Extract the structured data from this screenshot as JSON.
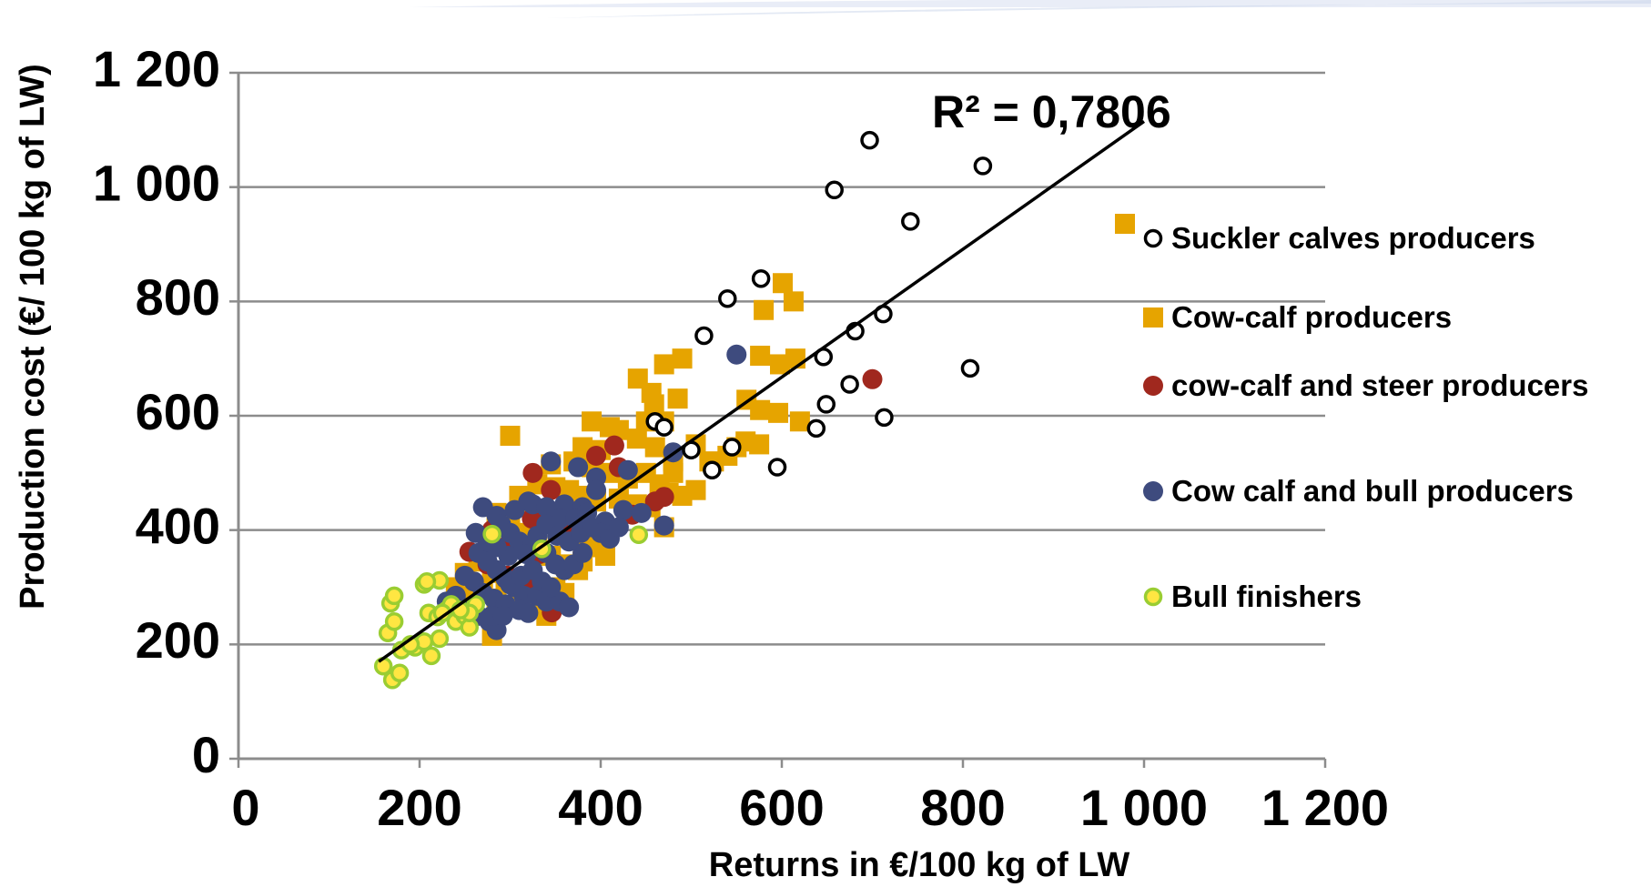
{
  "chart_data": {
    "type": "scatter",
    "xlabel": "Returns in €/100 kg of LW",
    "ylabel": "Production cost (€/ 100 kg of LW)",
    "xlim": [
      0,
      1200
    ],
    "ylim": [
      0,
      1200
    ],
    "x_ticks": [
      "0",
      "200",
      "400",
      "600",
      "800",
      "1 000",
      "1 200"
    ],
    "y_ticks": [
      "0",
      "200",
      "400",
      "600",
      "800",
      "1 000",
      "1 200"
    ],
    "grid": "horizontal",
    "legend_position": "right",
    "trendline": {
      "label": "R² = 0,7806",
      "from": [
        155,
        170
      ],
      "to": [
        1000,
        1115
      ]
    },
    "series": [
      {
        "name": "Suckler calves producers",
        "marker": "circle-open",
        "fill": "#ffffff",
        "stroke": "#000000",
        "points": [
          [
            697,
            1082
          ],
          [
            822,
            1037
          ],
          [
            658,
            995
          ],
          [
            742,
            940
          ],
          [
            577,
            840
          ],
          [
            540,
            805
          ],
          [
            712,
            778
          ],
          [
            681,
            748
          ],
          [
            514,
            740
          ],
          [
            646,
            703
          ],
          [
            808,
            683
          ],
          [
            675,
            655
          ],
          [
            649,
            620
          ],
          [
            713,
            597
          ],
          [
            638,
            578
          ],
          [
            595,
            510
          ],
          [
            523,
            505
          ],
          [
            460,
            590
          ],
          [
            470,
            580
          ],
          [
            500,
            540
          ],
          [
            545,
            545
          ]
        ]
      },
      {
        "name": "Cow-calf producers",
        "marker": "square",
        "fill": "#e6a400",
        "stroke": "#e6a400",
        "points": [
          [
            601,
            832
          ],
          [
            613,
            800
          ],
          [
            580,
            785
          ],
          [
            470,
            690
          ],
          [
            490,
            700
          ],
          [
            576,
            705
          ],
          [
            598,
            690
          ],
          [
            615,
            700
          ],
          [
            441,
            665
          ],
          [
            456,
            640
          ],
          [
            459,
            620
          ],
          [
            485,
            630
          ],
          [
            561,
            628
          ],
          [
            576,
            610
          ],
          [
            596,
            605
          ],
          [
            470,
            590
          ],
          [
            450,
            590
          ],
          [
            390,
            590
          ],
          [
            410,
            580
          ],
          [
            420,
            575
          ],
          [
            620,
            590
          ],
          [
            300,
            565
          ],
          [
            380,
            545
          ],
          [
            400,
            540
          ],
          [
            440,
            560
          ],
          [
            460,
            545
          ],
          [
            480,
            520
          ],
          [
            525,
            520
          ],
          [
            550,
            545
          ],
          [
            560,
            555
          ],
          [
            575,
            550
          ],
          [
            345,
            515
          ],
          [
            370,
            520
          ],
          [
            390,
            510
          ],
          [
            410,
            500
          ],
          [
            430,
            490
          ],
          [
            450,
            500
          ],
          [
            465,
            480
          ],
          [
            475,
            465
          ],
          [
            490,
            460
          ],
          [
            505,
            470
          ],
          [
            330,
            480
          ],
          [
            350,
            475
          ],
          [
            365,
            470
          ],
          [
            380,
            460
          ],
          [
            395,
            450
          ],
          [
            420,
            455
          ],
          [
            440,
            445
          ],
          [
            455,
            440
          ],
          [
            470,
            405
          ],
          [
            310,
            460
          ],
          [
            320,
            440
          ],
          [
            340,
            420
          ],
          [
            355,
            415
          ],
          [
            370,
            400
          ],
          [
            385,
            380
          ],
          [
            395,
            370
          ],
          [
            405,
            355
          ],
          [
            285,
            430
          ],
          [
            300,
            410
          ],
          [
            315,
            395
          ],
          [
            330,
            370
          ],
          [
            345,
            355
          ],
          [
            360,
            340
          ],
          [
            375,
            330
          ],
          [
            380,
            345
          ],
          [
            265,
            345
          ],
          [
            280,
            325
          ],
          [
            295,
            310
          ],
          [
            310,
            290
          ],
          [
            325,
            275
          ],
          [
            340,
            250
          ],
          [
            350,
            300
          ],
          [
            360,
            290
          ],
          [
            250,
            325
          ],
          [
            270,
            300
          ],
          [
            285,
            280
          ],
          [
            280,
            215
          ],
          [
            240,
            300
          ],
          [
            255,
            290
          ],
          [
            520,
            520
          ],
          [
            540,
            530
          ],
          [
            505,
            550
          ],
          [
            480,
            500
          ]
        ]
      },
      {
        "name": "cow-calf and steer producers",
        "marker": "circle",
        "fill": "#a0281e",
        "stroke": "#a0281e",
        "points": [
          [
            700,
            664
          ],
          [
            415,
            548
          ],
          [
            395,
            530
          ],
          [
            470,
            458
          ],
          [
            362,
            398
          ],
          [
            332,
            358
          ],
          [
            324,
            420
          ],
          [
            255,
            362
          ],
          [
            275,
            340
          ],
          [
            297,
            320
          ],
          [
            316,
            305
          ],
          [
            346,
            256
          ],
          [
            435,
            427
          ],
          [
            460,
            450
          ],
          [
            420,
            510
          ],
          [
            370,
            405
          ],
          [
            300,
            380
          ],
          [
            280,
            400
          ],
          [
            325,
            500
          ],
          [
            345,
            470
          ]
        ]
      },
      {
        "name": "Cow calf and bull producers",
        "marker": "circle",
        "fill": "#3e4b7e",
        "stroke": "#3e4b7e",
        "points": [
          [
            550,
            707
          ],
          [
            480,
            536
          ],
          [
            430,
            505
          ],
          [
            395,
            492
          ],
          [
            375,
            510
          ],
          [
            345,
            520
          ],
          [
            325,
            445
          ],
          [
            305,
            435
          ],
          [
            285,
            425
          ],
          [
            270,
            440
          ],
          [
            360,
            445
          ],
          [
            380,
            440
          ],
          [
            395,
            470
          ],
          [
            320,
            450
          ],
          [
            340,
            440
          ],
          [
            355,
            420
          ],
          [
            372,
            420
          ],
          [
            385,
            430
          ],
          [
            405,
            415
          ],
          [
            425,
            435
          ],
          [
            445,
            430
          ],
          [
            470,
            408
          ],
          [
            290,
            410
          ],
          [
            300,
            395
          ],
          [
            310,
            380
          ],
          [
            325,
            375
          ],
          [
            340,
            360
          ],
          [
            350,
            340
          ],
          [
            360,
            330
          ],
          [
            370,
            340
          ],
          [
            380,
            360
          ],
          [
            265,
            360
          ],
          [
            275,
            345
          ],
          [
            285,
            330
          ],
          [
            295,
            315
          ],
          [
            305,
            300
          ],
          [
            315,
            285
          ],
          [
            330,
            285
          ],
          [
            340,
            275
          ],
          [
            355,
            275
          ],
          [
            365,
            265
          ],
          [
            250,
            320
          ],
          [
            260,
            310
          ],
          [
            270,
            290
          ],
          [
            282,
            280
          ],
          [
            295,
            270
          ],
          [
            310,
            260
          ],
          [
            320,
            255
          ],
          [
            277,
            240
          ],
          [
            285,
            225
          ],
          [
            300,
            305
          ],
          [
            312,
            320
          ],
          [
            325,
            330
          ],
          [
            335,
            310
          ],
          [
            345,
            300
          ],
          [
            230,
            275
          ],
          [
            240,
            285
          ],
          [
            255,
            265
          ],
          [
            265,
            250
          ],
          [
            280,
            250
          ],
          [
            292,
            250
          ],
          [
            318,
            358
          ],
          [
            330,
            390
          ],
          [
            298,
            355
          ],
          [
            285,
            370
          ],
          [
            275,
            380
          ],
          [
            262,
            395
          ],
          [
            340,
            410
          ],
          [
            352,
            390
          ],
          [
            365,
            380
          ],
          [
            378,
            395
          ],
          [
            390,
            405
          ],
          [
            400,
            395
          ],
          [
            410,
            385
          ],
          [
            420,
            405
          ]
        ]
      },
      {
        "name": "Bull finishers",
        "marker": "circle-bordered",
        "fill": "#ffe642",
        "stroke": "#9acd32",
        "points": [
          [
            160,
            162
          ],
          [
            170,
            138
          ],
          [
            178,
            150
          ],
          [
            165,
            220
          ],
          [
            172,
            240
          ],
          [
            168,
            272
          ],
          [
            172,
            285
          ],
          [
            180,
            190
          ],
          [
            195,
            195
          ],
          [
            205,
            205
          ],
          [
            213,
            180
          ],
          [
            222,
            210
          ],
          [
            210,
            255
          ],
          [
            220,
            248
          ],
          [
            230,
            260
          ],
          [
            240,
            240
          ],
          [
            250,
            250
          ],
          [
            255,
            230
          ],
          [
            262,
            270
          ],
          [
            205,
            305
          ],
          [
            222,
            312
          ],
          [
            208,
            310
          ],
          [
            255,
            255
          ],
          [
            280,
            393
          ],
          [
            335,
            367
          ],
          [
            442,
            392
          ],
          [
            235,
            270
          ],
          [
            245,
            260
          ],
          [
            225,
            255
          ],
          [
            190,
            200
          ]
        ]
      }
    ]
  }
}
